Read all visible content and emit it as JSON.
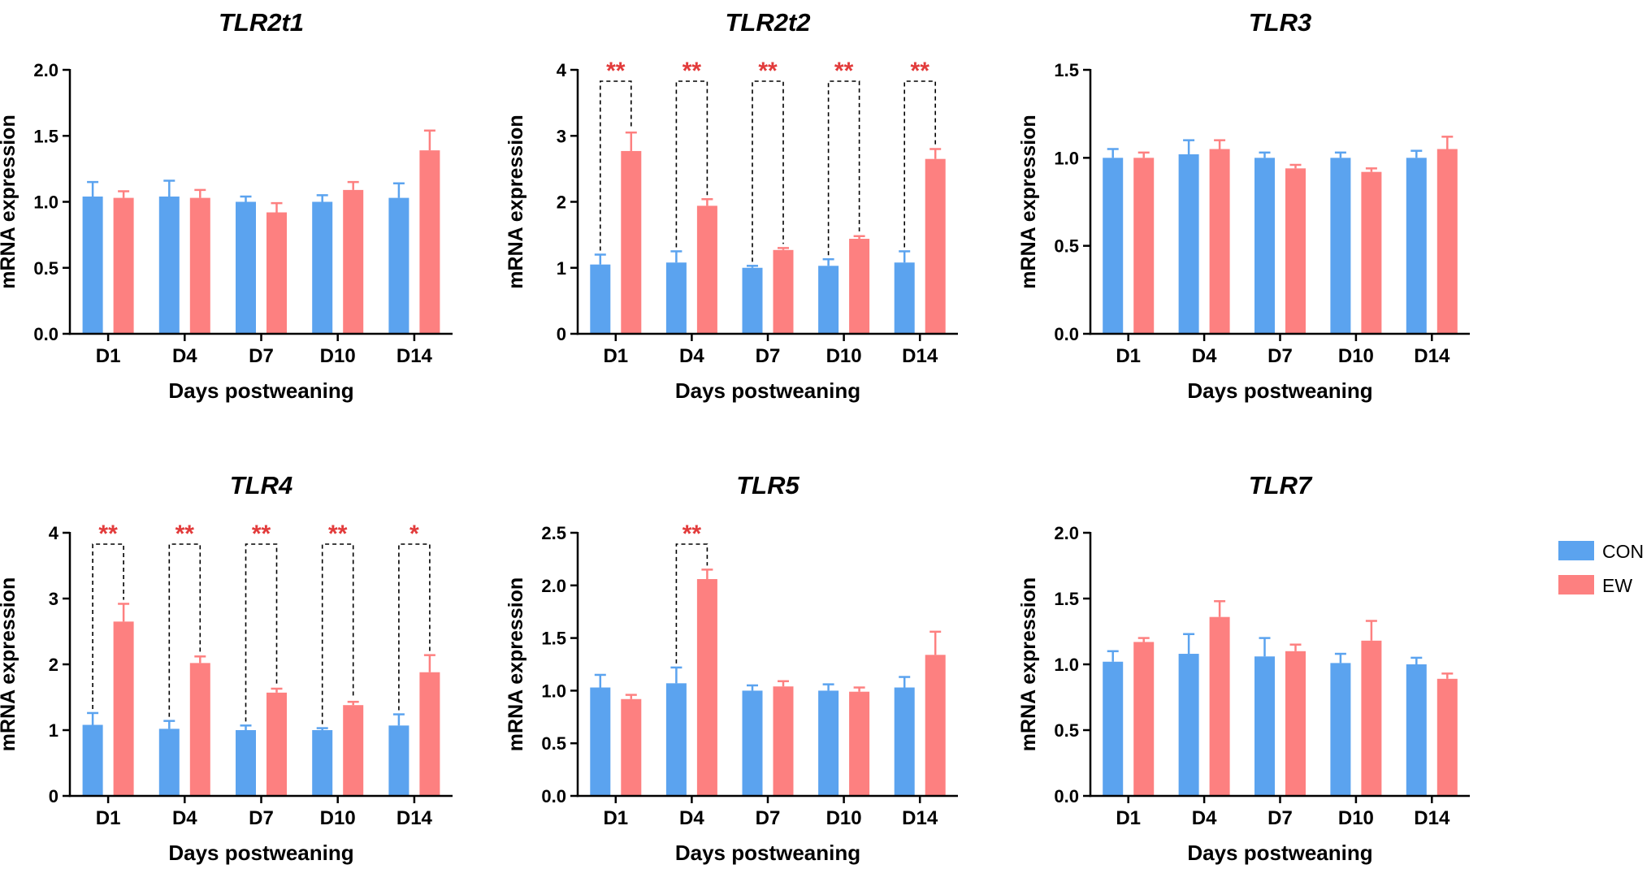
{
  "chart_data": [
    {
      "type": "bar",
      "title": "TLR2t1",
      "xlabel": "Days postweaning",
      "ylabel": "mRNA expression",
      "ylim": [
        0,
        2.0
      ],
      "yticks": [
        0.0,
        0.5,
        1.0,
        1.5,
        2.0
      ],
      "ytick_labels": [
        "0.0",
        "0.5",
        "1.0",
        "1.5",
        "2.0"
      ],
      "categories": [
        "D1",
        "D4",
        "D7",
        "D10",
        "D14"
      ],
      "series": [
        {
          "name": "CON",
          "values": [
            1.04,
            1.04,
            1.0,
            1.0,
            1.03
          ],
          "errors": [
            0.11,
            0.12,
            0.04,
            0.05,
            0.11
          ]
        },
        {
          "name": "EW",
          "values": [
            1.03,
            1.03,
            0.92,
            1.09,
            1.39
          ],
          "errors": [
            0.05,
            0.06,
            0.07,
            0.06,
            0.15
          ]
        }
      ],
      "significance": []
    },
    {
      "type": "bar",
      "title": "TLR2t2",
      "xlabel": "Days postweaning",
      "ylabel": "mRNA expression",
      "ylim": [
        0,
        4
      ],
      "yticks": [
        0,
        1,
        2,
        3,
        4
      ],
      "ytick_labels": [
        "0",
        "1",
        "2",
        "3",
        "4"
      ],
      "categories": [
        "D1",
        "D4",
        "D7",
        "D10",
        "D14"
      ],
      "series": [
        {
          "name": "CON",
          "values": [
            1.05,
            1.08,
            1.0,
            1.03,
            1.08
          ],
          "errors": [
            0.15,
            0.17,
            0.03,
            0.1,
            0.17
          ]
        },
        {
          "name": "EW",
          "values": [
            2.77,
            1.94,
            1.27,
            1.44,
            2.65
          ],
          "errors": [
            0.28,
            0.1,
            0.03,
            0.04,
            0.15
          ]
        }
      ],
      "significance": [
        {
          "category": "D1",
          "label": "**"
        },
        {
          "category": "D4",
          "label": "**"
        },
        {
          "category": "D7",
          "label": "**"
        },
        {
          "category": "D10",
          "label": "**"
        },
        {
          "category": "D14",
          "label": "**"
        }
      ]
    },
    {
      "type": "bar",
      "title": "TLR3",
      "xlabel": "Days postweaning",
      "ylabel": "mRNA expression",
      "ylim": [
        0,
        1.5
      ],
      "yticks": [
        0.0,
        0.5,
        1.0,
        1.5
      ],
      "ytick_labels": [
        "0.0",
        "0.5",
        "1.0",
        "1.5"
      ],
      "categories": [
        "D1",
        "D4",
        "D7",
        "D10",
        "D14"
      ],
      "series": [
        {
          "name": "CON",
          "values": [
            1.0,
            1.02,
            1.0,
            1.0,
            1.0
          ],
          "errors": [
            0.05,
            0.08,
            0.03,
            0.03,
            0.04
          ]
        },
        {
          "name": "EW",
          "values": [
            1.0,
            1.05,
            0.94,
            0.92,
            1.05
          ],
          "errors": [
            0.03,
            0.05,
            0.02,
            0.02,
            0.07
          ]
        }
      ],
      "significance": []
    },
    {
      "type": "bar",
      "title": "TLR4",
      "xlabel": "Days postweaning",
      "ylabel": "mRNA expression",
      "ylim": [
        0,
        4
      ],
      "yticks": [
        0,
        1,
        2,
        3,
        4
      ],
      "ytick_labels": [
        "0",
        "1",
        "2",
        "3",
        "4"
      ],
      "categories": [
        "D1",
        "D4",
        "D7",
        "D10",
        "D14"
      ],
      "series": [
        {
          "name": "CON",
          "values": [
            1.08,
            1.02,
            1.0,
            1.0,
            1.07
          ],
          "errors": [
            0.18,
            0.12,
            0.07,
            0.03,
            0.17
          ]
        },
        {
          "name": "EW",
          "values": [
            2.65,
            2.02,
            1.57,
            1.38,
            1.88
          ],
          "errors": [
            0.27,
            0.1,
            0.06,
            0.05,
            0.26
          ]
        }
      ],
      "significance": [
        {
          "category": "D1",
          "label": "**"
        },
        {
          "category": "D4",
          "label": "**"
        },
        {
          "category": "D7",
          "label": "**"
        },
        {
          "category": "D10",
          "label": "**"
        },
        {
          "category": "D14",
          "label": "*"
        }
      ]
    },
    {
      "type": "bar",
      "title": "TLR5",
      "xlabel": "Days postweaning",
      "ylabel": "mRNA expression",
      "ylim": [
        0,
        2.5
      ],
      "yticks": [
        0.0,
        0.5,
        1.0,
        1.5,
        2.0,
        2.5
      ],
      "ytick_labels": [
        "0.0",
        "0.5",
        "1.0",
        "1.5",
        "2.0",
        "2.5"
      ],
      "categories": [
        "D1",
        "D4",
        "D7",
        "D10",
        "D14"
      ],
      "series": [
        {
          "name": "CON",
          "values": [
            1.03,
            1.07,
            1.0,
            1.0,
            1.03
          ],
          "errors": [
            0.12,
            0.15,
            0.05,
            0.06,
            0.1
          ]
        },
        {
          "name": "EW",
          "values": [
            0.92,
            2.06,
            1.04,
            0.99,
            1.34
          ],
          "errors": [
            0.04,
            0.09,
            0.05,
            0.04,
            0.22
          ]
        }
      ],
      "significance": [
        {
          "category": "D4",
          "label": "**"
        }
      ]
    },
    {
      "type": "bar",
      "title": "TLR7",
      "xlabel": "Days postweaning",
      "ylabel": "mRNA expression",
      "ylim": [
        0,
        2.0
      ],
      "yticks": [
        0.0,
        0.5,
        1.0,
        1.5,
        2.0
      ],
      "ytick_labels": [
        "0.0",
        "0.5",
        "1.0",
        "1.5",
        "2.0"
      ],
      "categories": [
        "D1",
        "D4",
        "D7",
        "D10",
        "D14"
      ],
      "series": [
        {
          "name": "CON",
          "values": [
            1.02,
            1.08,
            1.06,
            1.01,
            1.0
          ],
          "errors": [
            0.08,
            0.15,
            0.14,
            0.07,
            0.05
          ]
        },
        {
          "name": "EW",
          "values": [
            1.17,
            1.36,
            1.1,
            1.18,
            0.89
          ],
          "errors": [
            0.03,
            0.12,
            0.05,
            0.15,
            0.04
          ]
        }
      ],
      "significance": []
    }
  ],
  "legend": {
    "items": [
      {
        "name": "CON",
        "color": "#5ba3ef"
      },
      {
        "name": "EW",
        "color": "#fd8080"
      }
    ]
  },
  "colors": {
    "con": "#5ba3ef",
    "ew": "#fd8080",
    "significance": "#e23b3b",
    "axis": "#000000"
  }
}
